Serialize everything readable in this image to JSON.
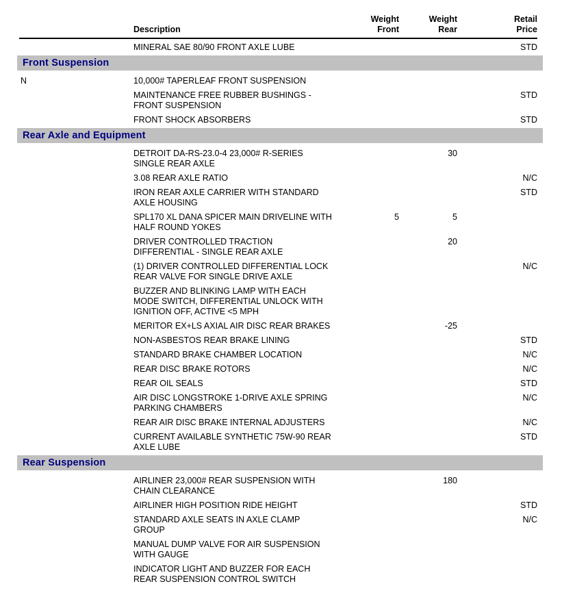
{
  "header": {
    "code": "",
    "description": "Description",
    "weight_front": "Weight\nFront",
    "weight_rear": "Weight\nRear",
    "retail_price": "Retail\nPrice"
  },
  "colors": {
    "section_bg": "#c0c0c0",
    "section_text": "#000080",
    "rule": "#000000"
  },
  "rows": [
    {
      "type": "item",
      "code": "",
      "description": "MINERAL SAE 80/90 FRONT AXLE LUBE",
      "weight_front": "",
      "weight_rear": "",
      "price": "STD"
    },
    {
      "type": "section",
      "title": "Front Suspension"
    },
    {
      "type": "item",
      "code": "N",
      "description": "10,000# TAPERLEAF FRONT SUSPENSION",
      "weight_front": "",
      "weight_rear": "",
      "price": ""
    },
    {
      "type": "item",
      "code": "",
      "description": "MAINTENANCE FREE RUBBER BUSHINGS -\nFRONT SUSPENSION",
      "weight_front": "",
      "weight_rear": "",
      "price": "STD"
    },
    {
      "type": "item",
      "code": "",
      "description": "FRONT SHOCK ABSORBERS",
      "weight_front": "",
      "weight_rear": "",
      "price": "STD"
    },
    {
      "type": "section",
      "title": "Rear Axle and Equipment"
    },
    {
      "type": "item",
      "code": "",
      "description": "DETROIT DA-RS-23.0-4 23,000# R-SERIES\nSINGLE REAR AXLE",
      "weight_front": "",
      "weight_rear": "30",
      "price": ""
    },
    {
      "type": "item",
      "code": "",
      "description": "3.08 REAR AXLE RATIO",
      "weight_front": "",
      "weight_rear": "",
      "price": "N/C"
    },
    {
      "type": "item",
      "code": "",
      "description": "IRON REAR AXLE CARRIER WITH STANDARD\nAXLE HOUSING",
      "weight_front": "",
      "weight_rear": "",
      "price": "STD"
    },
    {
      "type": "item",
      "code": "",
      "description": "SPL170 XL DANA SPICER MAIN DRIVELINE WITH\nHALF ROUND YOKES",
      "weight_front": "5",
      "weight_rear": "5",
      "price": ""
    },
    {
      "type": "item",
      "code": "",
      "description": "DRIVER CONTROLLED TRACTION\nDIFFERENTIAL - SINGLE REAR AXLE",
      "weight_front": "",
      "weight_rear": "20",
      "price": ""
    },
    {
      "type": "item",
      "code": "",
      "description": "(1) DRIVER CONTROLLED DIFFERENTIAL LOCK\nREAR VALVE FOR SINGLE DRIVE AXLE",
      "weight_front": "",
      "weight_rear": "",
      "price": "N/C"
    },
    {
      "type": "item",
      "code": "",
      "description": "BUZZER AND BLINKING LAMP WITH EACH\nMODE SWITCH, DIFFERENTIAL UNLOCK WITH\nIGNITION OFF, ACTIVE <5 MPH",
      "weight_front": "",
      "weight_rear": "",
      "price": ""
    },
    {
      "type": "item",
      "code": "",
      "description": "MERITOR EX+LS AXIAL AIR DISC REAR BRAKES",
      "weight_front": "",
      "weight_rear": "-25",
      "price": ""
    },
    {
      "type": "item",
      "code": "",
      "description": "NON-ASBESTOS REAR BRAKE LINING",
      "weight_front": "",
      "weight_rear": "",
      "price": "STD"
    },
    {
      "type": "item",
      "code": "",
      "description": "STANDARD BRAKE CHAMBER LOCATION",
      "weight_front": "",
      "weight_rear": "",
      "price": "N/C"
    },
    {
      "type": "item",
      "code": "",
      "description": "REAR DISC BRAKE ROTORS",
      "weight_front": "",
      "weight_rear": "",
      "price": "N/C"
    },
    {
      "type": "item",
      "code": "",
      "description": "REAR OIL SEALS",
      "weight_front": "",
      "weight_rear": "",
      "price": "STD"
    },
    {
      "type": "item",
      "code": "",
      "description": "AIR DISC LONGSTROKE 1-DRIVE AXLE SPRING\nPARKING CHAMBERS",
      "weight_front": "",
      "weight_rear": "",
      "price": "N/C"
    },
    {
      "type": "item",
      "code": "",
      "description": "REAR AIR DISC BRAKE INTERNAL ADJUSTERS",
      "weight_front": "",
      "weight_rear": "",
      "price": "N/C"
    },
    {
      "type": "item",
      "code": "",
      "description": "CURRENT AVAILABLE SYNTHETIC 75W-90 REAR\nAXLE LUBE",
      "weight_front": "",
      "weight_rear": "",
      "price": "STD"
    },
    {
      "type": "section",
      "title": "Rear Suspension"
    },
    {
      "type": "item",
      "code": "",
      "description": "AIRLINER 23,000# REAR SUSPENSION WITH\nCHAIN CLEARANCE",
      "weight_front": "",
      "weight_rear": "180",
      "price": ""
    },
    {
      "type": "item",
      "code": "",
      "description": "AIRLINER HIGH POSITION RIDE HEIGHT",
      "weight_front": "",
      "weight_rear": "",
      "price": "STD"
    },
    {
      "type": "item",
      "code": "",
      "description": "STANDARD AXLE SEATS IN AXLE CLAMP\nGROUP",
      "weight_front": "",
      "weight_rear": "",
      "price": "N/C"
    },
    {
      "type": "item",
      "code": "",
      "description": "MANUAL DUMP VALVE FOR AIR SUSPENSION\nWITH GAUGE",
      "weight_front": "",
      "weight_rear": "",
      "price": ""
    },
    {
      "type": "item",
      "code": "",
      "description": "INDICATOR LIGHT AND BUZZER FOR EACH\nREAR SUSPENSION CONTROL SWITCH",
      "weight_front": "",
      "weight_rear": "",
      "price": ""
    }
  ]
}
